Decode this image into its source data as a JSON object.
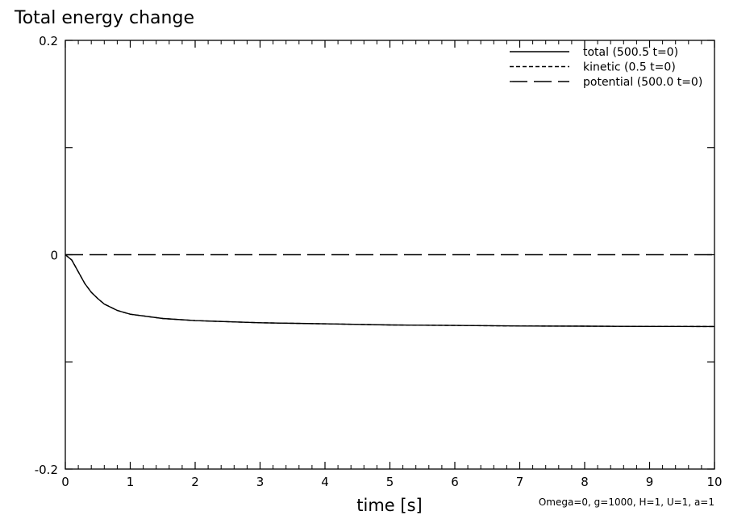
{
  "chart_data": {
    "type": "line",
    "title": "Total energy change",
    "xlabel": "time [s]",
    "ylabel": "",
    "xlim": [
      0,
      10
    ],
    "ylim": [
      -0.2,
      0.2
    ],
    "x_ticks": [
      "0",
      "1",
      "2",
      "3",
      "4",
      "5",
      "6",
      "7",
      "8",
      "9",
      "10"
    ],
    "y_ticks": [
      "-0.2",
      "0",
      "0.2"
    ],
    "grid": false,
    "legend_position": "top-right",
    "annotation": "Omega=0, g=1000, H=1, U=1, a=1",
    "series": [
      {
        "name": "total (500.5 t=0)",
        "style": "solid",
        "x": [
          0,
          0.1,
          0.2,
          0.3,
          0.4,
          0.5,
          0.6,
          0.8,
          1.0,
          1.5,
          2.0,
          3.0,
          4.0,
          5.0,
          6.0,
          7.0,
          8.0,
          9.0,
          10.0
        ],
        "y": [
          0,
          -0.005,
          -0.016,
          -0.027,
          -0.035,
          -0.041,
          -0.046,
          -0.052,
          -0.0555,
          -0.0595,
          -0.0615,
          -0.0635,
          -0.0645,
          -0.0655,
          -0.066,
          -0.0665,
          -0.0667,
          -0.0669,
          -0.067
        ]
      },
      {
        "name": "kinetic (0.5 t=0)",
        "style": "dashed",
        "x": [
          0,
          0.1,
          0.2,
          0.3,
          0.4,
          0.5,
          0.6,
          0.8,
          1.0,
          1.5,
          2.0,
          3.0,
          4.0,
          5.0,
          6.0,
          7.0,
          8.0,
          9.0,
          10.0
        ],
        "y": [
          0,
          -0.005,
          -0.016,
          -0.027,
          -0.035,
          -0.041,
          -0.046,
          -0.052,
          -0.0555,
          -0.0595,
          -0.0615,
          -0.0635,
          -0.0645,
          -0.0655,
          -0.066,
          -0.0665,
          -0.0667,
          -0.0669,
          -0.067
        ]
      },
      {
        "name": "potential (500.0 t=0)",
        "style": "long-dashed",
        "x": [
          0,
          10
        ],
        "y": [
          0,
          0
        ]
      }
    ]
  }
}
